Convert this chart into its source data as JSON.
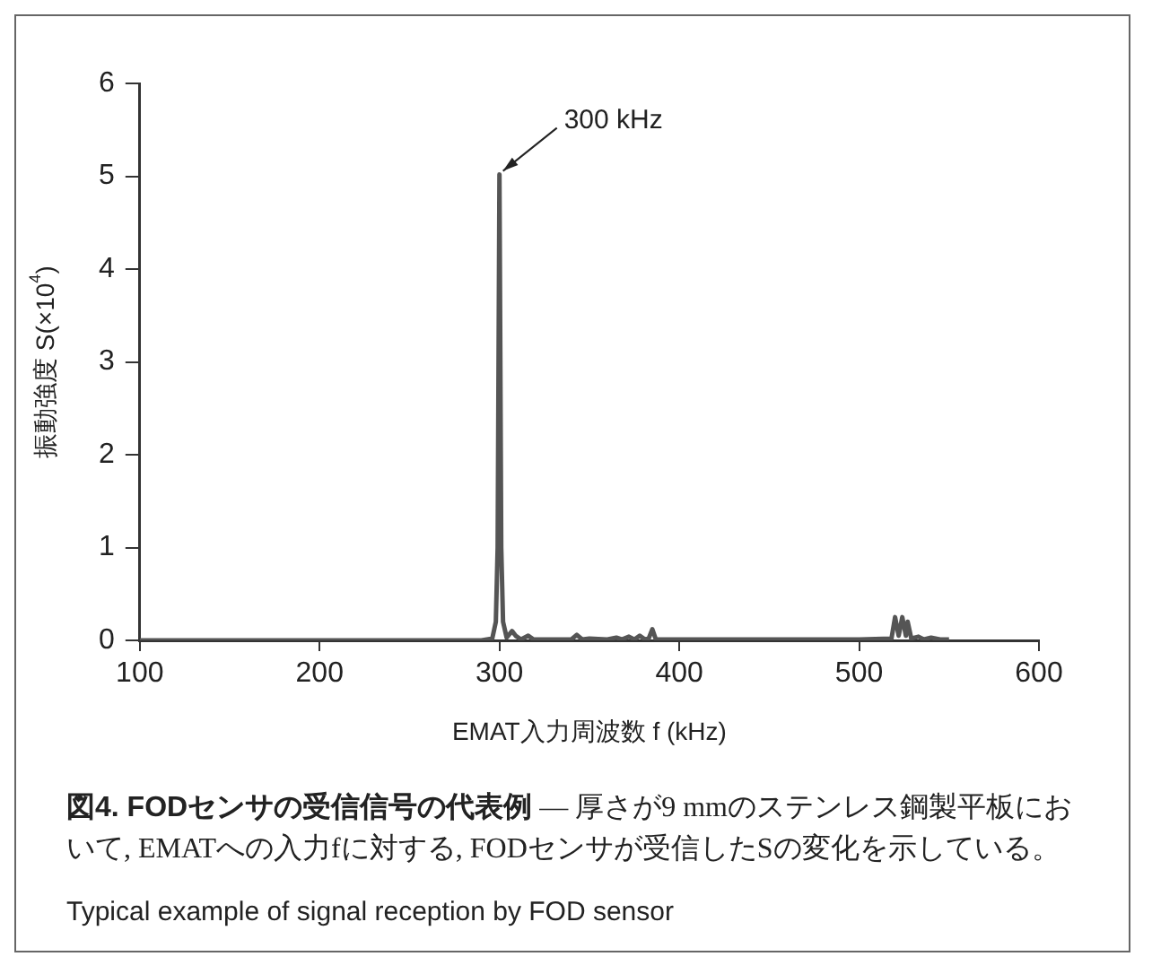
{
  "chart_data": {
    "type": "line",
    "title": "図4. FODセンサの受信信号の代表例",
    "subtitle": "— 厚さが9 mmのステンレス鋼製平板において, EMATへの入力fに対する, FODセンサが受信したSの変化を示している。",
    "xlabel": "EMAT入力周波数 f (kHz)",
    "ylabel": "振動強度 S(×10$^{4}$)",
    "x": [
      100,
      290,
      296,
      298,
      299,
      300,
      301,
      302,
      304,
      307,
      309,
      312,
      316,
      319,
      330,
      340,
      343,
      346,
      350,
      360,
      365,
      368,
      372,
      375,
      378,
      381,
      383,
      385,
      387,
      400,
      500,
      518,
      520,
      522,
      524,
      526,
      527,
      529,
      533,
      536,
      540,
      545,
      550
    ],
    "series": [
      {
        "color": "#555555",
        "values": [
          0,
          0,
          0.02,
          0.2,
          1.0,
          5.02,
          1.0,
          0.2,
          0.03,
          0.1,
          0.05,
          0.01,
          0.05,
          0.01,
          0.01,
          0.01,
          0.06,
          0.01,
          0.02,
          0.01,
          0.03,
          0.01,
          0.04,
          0.01,
          0.05,
          0.01,
          0.02,
          0.12,
          0.01,
          0.01,
          0.01,
          0.02,
          0.25,
          0.05,
          0.25,
          0.05,
          0.2,
          0.02,
          0.04,
          0.01,
          0.03,
          0.01,
          0.01
        ]
      }
    ],
    "xlim": [
      100,
      600
    ],
    "xticks": [
      100,
      200,
      300,
      400,
      500,
      600
    ],
    "ylim": [
      0,
      6
    ],
    "yticks": [
      0,
      1,
      2,
      3,
      4,
      5,
      6
    ],
    "grid": false,
    "legend": false,
    "marker": "none",
    "line_style": "solid",
    "annotations": [
      {
        "text": "300 kHz",
        "x": 300,
        "y": 5.02
      },
      "Typical example of signal reception by FOD sensor"
    ]
  }
}
